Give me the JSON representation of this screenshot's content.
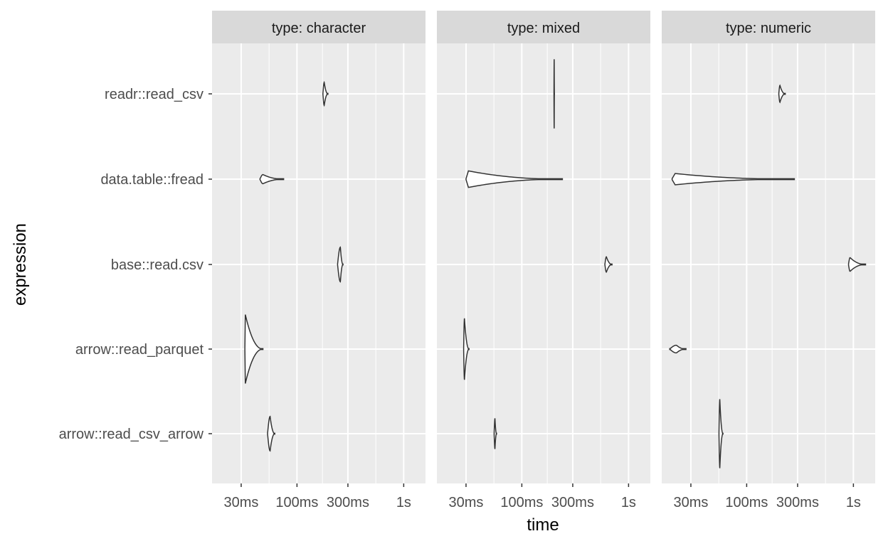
{
  "chart_data": {
    "type": "violin",
    "xlabel": "time",
    "ylabel": "expression",
    "x_scale": "log10",
    "x_ticks": [
      {
        "value_seconds": 0.03,
        "label": "30ms"
      },
      {
        "value_seconds": 0.1,
        "label": "100ms"
      },
      {
        "value_seconds": 0.3,
        "label": "300ms"
      },
      {
        "value_seconds": 1,
        "label": "1s"
      }
    ],
    "xlim_seconds": [
      0.016,
      1.6
    ],
    "categories": [
      "readr::read_csv",
      "data.table::fread",
      "base::read.csv",
      "arrow::read_parquet",
      "arrow::read_csv_arrow"
    ],
    "panels": [
      {
        "strip": "type: character",
        "violins": [
          {
            "expression": "readr::read_csv",
            "min": 0.175,
            "max": 0.195,
            "mode": 0.18,
            "width": 0.3
          },
          {
            "expression": "data.table::fread",
            "min": 0.045,
            "max": 0.075,
            "mode": 0.048,
            "width": 0.12
          },
          {
            "expression": "base::read.csv",
            "min": 0.24,
            "max": 0.27,
            "mode": 0.255,
            "width": 0.45
          },
          {
            "expression": "arrow::read_parquet",
            "min": 0.0325,
            "max": 0.048,
            "mode": 0.0328,
            "width": 0.9
          },
          {
            "expression": "arrow::read_csv_arrow",
            "min": 0.053,
            "max": 0.062,
            "mode": 0.056,
            "width": 0.45
          }
        ]
      },
      {
        "strip": "type: mixed",
        "violins": [
          {
            "expression": "readr::read_csv",
            "min": 0.2,
            "max": 0.202,
            "mode": 0.201,
            "width": 0.9
          },
          {
            "expression": "data.table::fread",
            "min": 0.03,
            "max": 0.24,
            "mode": 0.031,
            "width": 0.22
          },
          {
            "expression": "base::read.csv",
            "min": 0.6,
            "max": 0.7,
            "mode": 0.62,
            "width": 0.2
          },
          {
            "expression": "arrow::read_parquet",
            "min": 0.0285,
            "max": 0.032,
            "mode": 0.029,
            "width": 0.8
          },
          {
            "expression": "arrow::read_csv_arrow",
            "min": 0.055,
            "max": 0.058,
            "mode": 0.056,
            "width": 0.4
          }
        ]
      },
      {
        "strip": "type: numeric",
        "violins": [
          {
            "expression": "readr::read_csv",
            "min": 0.2,
            "max": 0.23,
            "mode": 0.205,
            "width": 0.22
          },
          {
            "expression": "data.table::fread",
            "min": 0.02,
            "max": 0.28,
            "mode": 0.021,
            "width": 0.15
          },
          {
            "expression": "base::read.csv",
            "min": 0.9,
            "max": 1.3,
            "mode": 0.93,
            "width": 0.18
          },
          {
            "expression": "arrow::read_parquet",
            "min": 0.019,
            "max": 0.027,
            "mode": 0.022,
            "width": 0.1
          },
          {
            "expression": "arrow::read_csv_arrow",
            "min": 0.055,
            "max": 0.06,
            "mode": 0.056,
            "width": 0.9
          }
        ]
      }
    ],
    "grid": true,
    "legend": "none",
    "colors": {
      "panel_background": "#ebebeb",
      "strip_background": "#d9d9d9",
      "gridline": "#ffffff",
      "violin_outline": "#333333",
      "violin_fill": "#ffffff"
    }
  }
}
